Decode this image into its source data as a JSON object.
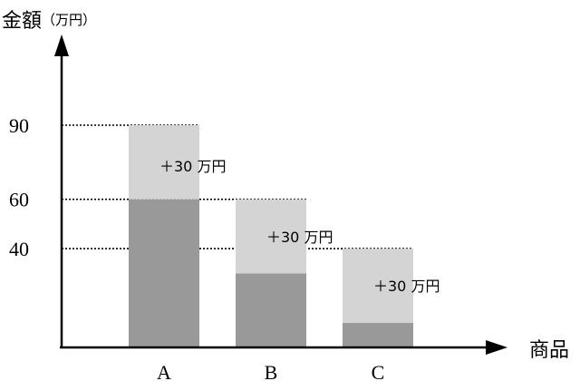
{
  "chart_data": {
    "type": "bar",
    "title": "",
    "ylabel": "金額",
    "ylabel_unit": "（万円）",
    "xlabel": "商品",
    "categories": [
      "A",
      "B",
      "C"
    ],
    "series": [
      {
        "values": [
          60,
          30,
          10
        ],
        "color": "#999999"
      },
      {
        "values": [
          30,
          30,
          30
        ],
        "color": "#d4d4d4"
      }
    ],
    "annotations": [
      "＋30 万円",
      "＋30 万円",
      "＋30 万円"
    ],
    "yticks": [
      {
        "value": 90,
        "label": "90"
      },
      {
        "value": 60,
        "label": "60"
      },
      {
        "value": 40,
        "label": "40"
      }
    ],
    "ylim": [
      0,
      90
    ],
    "grid": false,
    "reference_lines": "dotted lines at 90, 60, 40"
  }
}
